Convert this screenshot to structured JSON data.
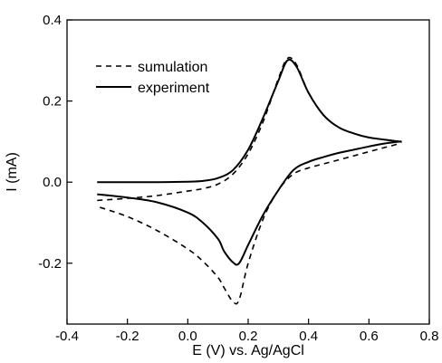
{
  "chart_data": {
    "type": "line",
    "title": "",
    "xlabel": "E (V) vs. Ag/AgCl",
    "ylabel": "I (mA)",
    "xlim": [
      -0.4,
      0.8
    ],
    "ylim": [
      -0.35,
      0.4
    ],
    "x_ticks": [
      "-0.4",
      "-0.2",
      "0.0",
      "0.2",
      "0.4",
      "0.6",
      "0.8"
    ],
    "y_ticks": [
      "-0.2",
      "0.0",
      "0.2",
      "0.4"
    ],
    "grid": false,
    "legend_position": "top-left",
    "series": [
      {
        "name": "sumulation",
        "style": "dashed",
        "color": "#000000",
        "points": [
          [
            -0.3,
            -0.045
          ],
          [
            -0.2,
            -0.04
          ],
          [
            -0.1,
            -0.033
          ],
          [
            0.0,
            -0.022
          ],
          [
            0.05,
            -0.016
          ],
          [
            0.1,
            -0.005
          ],
          [
            0.15,
            0.02
          ],
          [
            0.2,
            0.07
          ],
          [
            0.25,
            0.15
          ],
          [
            0.3,
            0.255
          ],
          [
            0.33,
            0.305
          ],
          [
            0.36,
            0.29
          ],
          [
            0.4,
            0.22
          ],
          [
            0.45,
            0.165
          ],
          [
            0.5,
            0.135
          ],
          [
            0.55,
            0.12
          ],
          [
            0.6,
            0.11
          ],
          [
            0.65,
            0.105
          ],
          [
            0.7,
            0.1
          ],
          [
            0.7,
            0.095
          ],
          [
            0.65,
            0.085
          ],
          [
            0.6,
            0.075
          ],
          [
            0.55,
            0.065
          ],
          [
            0.5,
            0.055
          ],
          [
            0.45,
            0.045
          ],
          [
            0.4,
            0.035
          ],
          [
            0.35,
            0.02
          ],
          [
            0.3,
            -0.02
          ],
          [
            0.25,
            -0.09
          ],
          [
            0.2,
            -0.2
          ],
          [
            0.17,
            -0.29
          ],
          [
            0.15,
            -0.295
          ],
          [
            0.12,
            -0.26
          ],
          [
            0.1,
            -0.235
          ],
          [
            0.05,
            -0.195
          ],
          [
            0.0,
            -0.165
          ],
          [
            -0.1,
            -0.12
          ],
          [
            -0.2,
            -0.085
          ],
          [
            -0.3,
            -0.06
          ]
        ]
      },
      {
        "name": "experiment",
        "style": "solid",
        "color": "#000000",
        "points": [
          [
            -0.3,
            0.0
          ],
          [
            -0.2,
            0.0
          ],
          [
            -0.1,
            0.0
          ],
          [
            0.0,
            0.001
          ],
          [
            0.05,
            0.003
          ],
          [
            0.1,
            0.01
          ],
          [
            0.15,
            0.03
          ],
          [
            0.2,
            0.08
          ],
          [
            0.25,
            0.16
          ],
          [
            0.3,
            0.25
          ],
          [
            0.33,
            0.3
          ],
          [
            0.36,
            0.285
          ],
          [
            0.4,
            0.22
          ],
          [
            0.45,
            0.165
          ],
          [
            0.5,
            0.135
          ],
          [
            0.55,
            0.12
          ],
          [
            0.6,
            0.11
          ],
          [
            0.65,
            0.105
          ],
          [
            0.7,
            0.1
          ],
          [
            0.7,
            0.1
          ],
          [
            0.65,
            0.095
          ],
          [
            0.6,
            0.088
          ],
          [
            0.55,
            0.08
          ],
          [
            0.5,
            0.072
          ],
          [
            0.45,
            0.062
          ],
          [
            0.4,
            0.05
          ],
          [
            0.35,
            0.03
          ],
          [
            0.3,
            -0.02
          ],
          [
            0.25,
            -0.08
          ],
          [
            0.2,
            -0.155
          ],
          [
            0.17,
            -0.2
          ],
          [
            0.15,
            -0.198
          ],
          [
            0.12,
            -0.17
          ],
          [
            0.1,
            -0.14
          ],
          [
            0.05,
            -0.1
          ],
          [
            0.0,
            -0.075
          ],
          [
            -0.1,
            -0.05
          ],
          [
            -0.2,
            -0.038
          ],
          [
            -0.3,
            -0.03
          ]
        ]
      }
    ]
  }
}
